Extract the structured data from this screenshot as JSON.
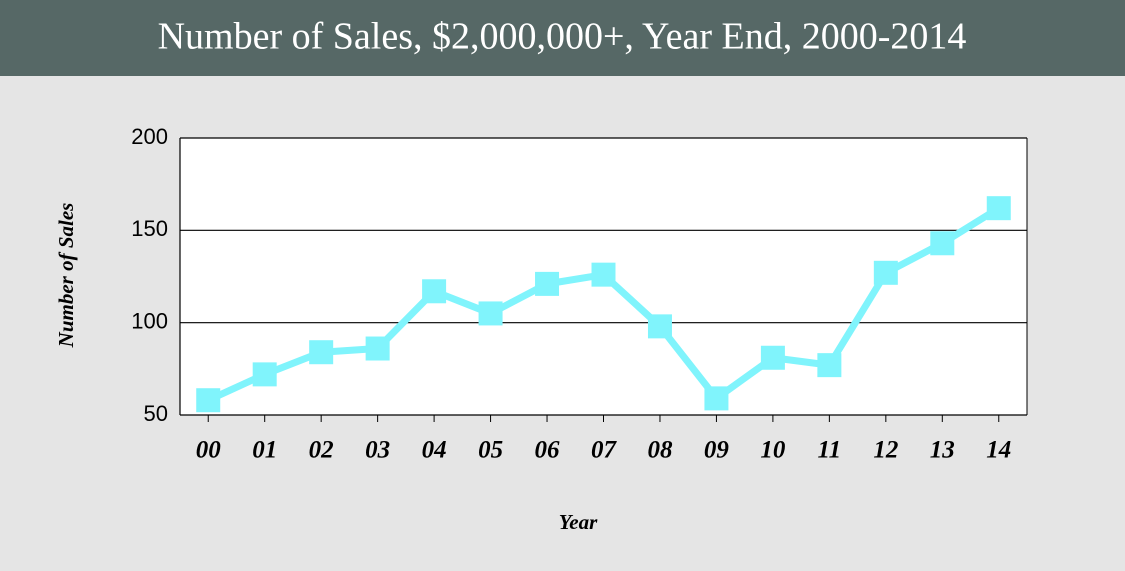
{
  "chart_data": {
    "type": "line",
    "title": "Number of Sales, $2,000,000+, Year End, 2000-2014",
    "x_label": "Year",
    "y_label": "Number of Sales",
    "categories": [
      "00",
      "01",
      "02",
      "03",
      "04",
      "05",
      "06",
      "07",
      "08",
      "09",
      "10",
      "11",
      "12",
      "13",
      "14"
    ],
    "series": [
      {
        "name": "Number of Sales",
        "color": "#80f4fc",
        "values": [
          58,
          72,
          84,
          86,
          117,
          105,
          121,
          126,
          98,
          59,
          81,
          77,
          127,
          143,
          162
        ]
      }
    ],
    "ylim": [
      50,
      200
    ],
    "yticks": [
      50,
      100,
      150,
      200
    ],
    "grid": true
  }
}
